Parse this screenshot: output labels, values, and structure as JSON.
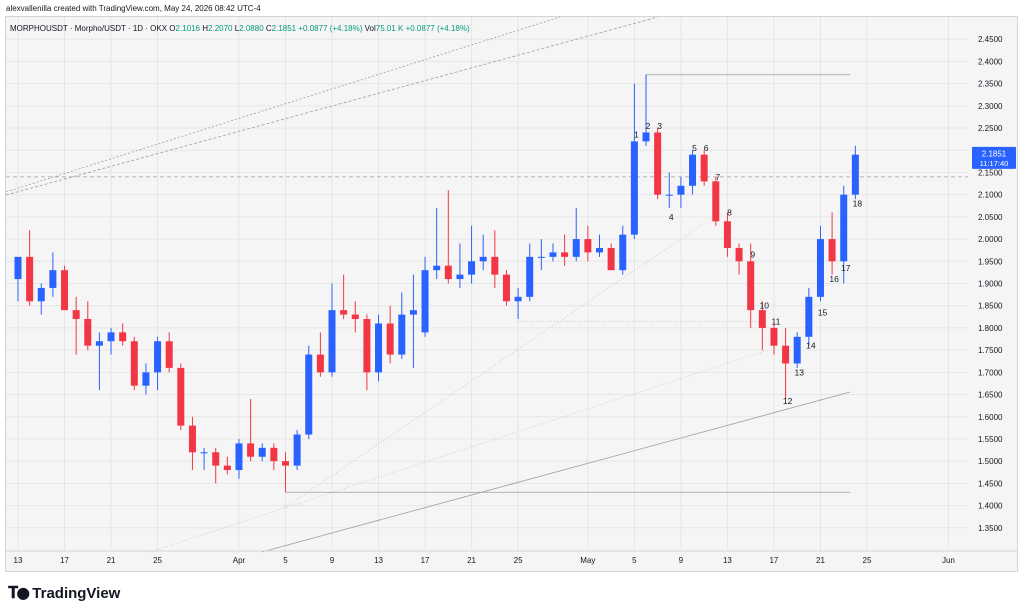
{
  "header": {
    "attribution": "alexvallenilla created with TradingView.com, May 24, 2026 08:42 UTC-4"
  },
  "legend": {
    "symbol": "MORPHOUSDT · Morpho/USDT · 1D · OKX",
    "open_label": "O",
    "open": "2.1016",
    "high_label": "H",
    "high": "2.2070",
    "low_label": "L",
    "low": "2.0880",
    "close_label": "C",
    "close": "2.1851",
    "change": "+0.0877 (+4.18%)",
    "vol_label": "Vol",
    "vol": "75.01 K",
    "vol_change": "+0.0877 (+4.18%)"
  },
  "price_tag": {
    "price": "2.1851",
    "countdown": "11:17:40",
    "color": "#2962ff"
  },
  "footer": {
    "brand": "TradingView"
  },
  "colors": {
    "up": "#2962ff",
    "down": "#f23645",
    "grid": "#e6e6e6",
    "text": "#131722"
  },
  "chart_data": {
    "type": "candlestick",
    "ylim": [
      1.3,
      2.5
    ],
    "y_ticks": [
      1.35,
      1.4,
      1.45,
      1.5,
      1.55,
      1.6,
      1.65,
      1.7,
      1.75,
      1.8,
      1.85,
      1.9,
      1.95,
      2.0,
      2.05,
      2.1,
      2.15,
      2.2,
      2.25,
      2.3,
      2.35,
      2.4,
      2.45
    ],
    "x_ticks": [
      {
        "label": "13",
        "date": "2026-03-13"
      },
      {
        "label": "17",
        "date": "2026-03-17"
      },
      {
        "label": "21",
        "date": "2026-03-21"
      },
      {
        "label": "25",
        "date": "2026-03-25"
      },
      {
        "label": "Apr",
        "date": "2026-04-01"
      },
      {
        "label": "5",
        "date": "2026-04-05"
      },
      {
        "label": "9",
        "date": "2026-04-09"
      },
      {
        "label": "13",
        "date": "2026-04-13"
      },
      {
        "label": "17",
        "date": "2026-04-17"
      },
      {
        "label": "21",
        "date": "2026-04-21"
      },
      {
        "label": "25",
        "date": "2026-04-25"
      },
      {
        "label": "May",
        "date": "2026-05-01"
      },
      {
        "label": "5",
        "date": "2026-05-05"
      },
      {
        "label": "9",
        "date": "2026-05-09"
      },
      {
        "label": "13",
        "date": "2026-05-13"
      },
      {
        "label": "17",
        "date": "2026-05-17"
      },
      {
        "label": "21",
        "date": "2026-05-21"
      },
      {
        "label": "25",
        "date": "2026-05-25"
      },
      {
        "label": "Jun",
        "date": "2026-06-01"
      }
    ],
    "candles": [
      {
        "date": "2026-03-13",
        "o": 1.91,
        "h": 1.95,
        "l": 1.86,
        "c": 1.96
      },
      {
        "date": "2026-03-14",
        "o": 1.96,
        "h": 2.02,
        "l": 1.85,
        "c": 1.86
      },
      {
        "date": "2026-03-15",
        "o": 1.86,
        "h": 1.9,
        "l": 1.83,
        "c": 1.89
      },
      {
        "date": "2026-03-16",
        "o": 1.89,
        "h": 1.97,
        "l": 1.87,
        "c": 1.93
      },
      {
        "date": "2026-03-17",
        "o": 1.93,
        "h": 1.94,
        "l": 1.84,
        "c": 1.84
      },
      {
        "date": "2026-03-18",
        "o": 1.84,
        "h": 1.87,
        "l": 1.74,
        "c": 1.82
      },
      {
        "date": "2026-03-19",
        "o": 1.82,
        "h": 1.86,
        "l": 1.75,
        "c": 1.76
      },
      {
        "date": "2026-03-20",
        "o": 1.76,
        "h": 1.79,
        "l": 1.66,
        "c": 1.77
      },
      {
        "date": "2026-03-21",
        "o": 1.77,
        "h": 1.8,
        "l": 1.74,
        "c": 1.79
      },
      {
        "date": "2026-03-22",
        "o": 1.79,
        "h": 1.81,
        "l": 1.76,
        "c": 1.77
      },
      {
        "date": "2026-03-23",
        "o": 1.77,
        "h": 1.78,
        "l": 1.66,
        "c": 1.67
      },
      {
        "date": "2026-03-24",
        "o": 1.67,
        "h": 1.72,
        "l": 1.65,
        "c": 1.7
      },
      {
        "date": "2026-03-25",
        "o": 1.7,
        "h": 1.78,
        "l": 1.66,
        "c": 1.77
      },
      {
        "date": "2026-03-26",
        "o": 1.77,
        "h": 1.79,
        "l": 1.7,
        "c": 1.71
      },
      {
        "date": "2026-03-27",
        "o": 1.71,
        "h": 1.72,
        "l": 1.57,
        "c": 1.58
      },
      {
        "date": "2026-03-28",
        "o": 1.58,
        "h": 1.6,
        "l": 1.48,
        "c": 1.52
      },
      {
        "date": "2026-03-29",
        "o": 1.52,
        "h": 1.53,
        "l": 1.48,
        "c": 1.52
      },
      {
        "date": "2026-03-30",
        "o": 1.52,
        "h": 1.53,
        "l": 1.45,
        "c": 1.49
      },
      {
        "date": "2026-03-31",
        "o": 1.49,
        "h": 1.51,
        "l": 1.47,
        "c": 1.48
      },
      {
        "date": "2026-04-01",
        "o": 1.48,
        "h": 1.55,
        "l": 1.46,
        "c": 1.54
      },
      {
        "date": "2026-04-02",
        "o": 1.54,
        "h": 1.64,
        "l": 1.5,
        "c": 1.51
      },
      {
        "date": "2026-04-03",
        "o": 1.51,
        "h": 1.54,
        "l": 1.5,
        "c": 1.53
      },
      {
        "date": "2026-04-04",
        "o": 1.53,
        "h": 1.54,
        "l": 1.48,
        "c": 1.5
      },
      {
        "date": "2026-04-05",
        "o": 1.5,
        "h": 1.52,
        "l": 1.43,
        "c": 1.49
      },
      {
        "date": "2026-04-06",
        "o": 1.49,
        "h": 1.57,
        "l": 1.48,
        "c": 1.56
      },
      {
        "date": "2026-04-07",
        "o": 1.56,
        "h": 1.76,
        "l": 1.55,
        "c": 1.74
      },
      {
        "date": "2026-04-08",
        "o": 1.74,
        "h": 1.79,
        "l": 1.69,
        "c": 1.7
      },
      {
        "date": "2026-04-09",
        "o": 1.7,
        "h": 1.9,
        "l": 1.69,
        "c": 1.84
      },
      {
        "date": "2026-04-10",
        "o": 1.84,
        "h": 1.92,
        "l": 1.82,
        "c": 1.83
      },
      {
        "date": "2026-04-11",
        "o": 1.83,
        "h": 1.86,
        "l": 1.79,
        "c": 1.82
      },
      {
        "date": "2026-04-12",
        "o": 1.82,
        "h": 1.83,
        "l": 1.66,
        "c": 1.7
      },
      {
        "date": "2026-04-13",
        "o": 1.7,
        "h": 1.83,
        "l": 1.68,
        "c": 1.81
      },
      {
        "date": "2026-04-14",
        "o": 1.81,
        "h": 1.85,
        "l": 1.72,
        "c": 1.74
      },
      {
        "date": "2026-04-15",
        "o": 1.74,
        "h": 1.88,
        "l": 1.73,
        "c": 1.83
      },
      {
        "date": "2026-04-16",
        "o": 1.83,
        "h": 1.92,
        "l": 1.71,
        "c": 1.84
      },
      {
        "date": "2026-04-17",
        "o": 1.79,
        "h": 1.96,
        "l": 1.78,
        "c": 1.93
      },
      {
        "date": "2026-04-18",
        "o": 1.93,
        "h": 2.07,
        "l": 1.91,
        "c": 1.94
      },
      {
        "date": "2026-04-19",
        "o": 1.94,
        "h": 2.11,
        "l": 1.9,
        "c": 1.91
      },
      {
        "date": "2026-04-20",
        "o": 1.91,
        "h": 1.99,
        "l": 1.89,
        "c": 1.92
      },
      {
        "date": "2026-04-21",
        "o": 1.92,
        "h": 2.03,
        "l": 1.9,
        "c": 1.95
      },
      {
        "date": "2026-04-22",
        "o": 1.95,
        "h": 2.01,
        "l": 1.93,
        "c": 1.96
      },
      {
        "date": "2026-04-23",
        "o": 1.96,
        "h": 2.02,
        "l": 1.89,
        "c": 1.92
      },
      {
        "date": "2026-04-24",
        "o": 1.92,
        "h": 1.93,
        "l": 1.85,
        "c": 1.86
      },
      {
        "date": "2026-04-25",
        "o": 1.86,
        "h": 1.89,
        "l": 1.82,
        "c": 1.87
      },
      {
        "date": "2026-04-26",
        "o": 1.87,
        "h": 1.99,
        "l": 1.86,
        "c": 1.96
      },
      {
        "date": "2026-04-27",
        "o": 1.96,
        "h": 2.0,
        "l": 1.93,
        "c": 1.96
      },
      {
        "date": "2026-04-28",
        "o": 1.96,
        "h": 1.99,
        "l": 1.95,
        "c": 1.97
      },
      {
        "date": "2026-04-29",
        "o": 1.97,
        "h": 2.01,
        "l": 1.94,
        "c": 1.96
      },
      {
        "date": "2026-04-30",
        "o": 1.96,
        "h": 2.07,
        "l": 1.95,
        "c": 2.0
      },
      {
        "date": "2026-05-01",
        "o": 2.0,
        "h": 2.03,
        "l": 1.95,
        "c": 1.97
      },
      {
        "date": "2026-05-02",
        "o": 1.97,
        "h": 2.01,
        "l": 1.96,
        "c": 1.98
      },
      {
        "date": "2026-05-03",
        "o": 1.98,
        "h": 1.99,
        "l": 1.93,
        "c": 1.93
      },
      {
        "date": "2026-05-04",
        "o": 1.93,
        "h": 2.03,
        "l": 1.92,
        "c": 2.01
      },
      {
        "date": "2026-05-05",
        "o": 2.01,
        "h": 2.35,
        "l": 2.0,
        "c": 2.22
      },
      {
        "date": "2026-05-06",
        "o": 2.22,
        "h": 2.37,
        "l": 2.21,
        "c": 2.24
      },
      {
        "date": "2026-05-07",
        "o": 2.24,
        "h": 2.25,
        "l": 2.09,
        "c": 2.1
      },
      {
        "date": "2026-05-08",
        "o": 2.1,
        "h": 2.15,
        "l": 2.07,
        "c": 2.1
      },
      {
        "date": "2026-05-09",
        "o": 2.1,
        "h": 2.14,
        "l": 2.07,
        "c": 2.12
      },
      {
        "date": "2026-05-10",
        "o": 2.12,
        "h": 2.2,
        "l": 2.1,
        "c": 2.19
      },
      {
        "date": "2026-05-11",
        "o": 2.19,
        "h": 2.2,
        "l": 2.12,
        "c": 2.13
      },
      {
        "date": "2026-05-12",
        "o": 2.13,
        "h": 2.14,
        "l": 2.03,
        "c": 2.04
      },
      {
        "date": "2026-05-13",
        "o": 2.04,
        "h": 2.06,
        "l": 1.96,
        "c": 1.98
      },
      {
        "date": "2026-05-14",
        "o": 1.98,
        "h": 1.99,
        "l": 1.92,
        "c": 1.95
      },
      {
        "date": "2026-05-15",
        "o": 1.95,
        "h": 1.99,
        "l": 1.8,
        "c": 1.84
      },
      {
        "date": "2026-05-16",
        "o": 1.84,
        "h": 1.86,
        "l": 1.75,
        "c": 1.8
      },
      {
        "date": "2026-05-17",
        "o": 1.8,
        "h": 1.81,
        "l": 1.74,
        "c": 1.76
      },
      {
        "date": "2026-05-18",
        "o": 1.76,
        "h": 1.8,
        "l": 1.64,
        "c": 1.72
      },
      {
        "date": "2026-05-19",
        "o": 1.72,
        "h": 1.79,
        "l": 1.71,
        "c": 1.78
      },
      {
        "date": "2026-05-20",
        "o": 1.78,
        "h": 1.89,
        "l": 1.76,
        "c": 1.87
      },
      {
        "date": "2026-05-21",
        "o": 1.87,
        "h": 2.03,
        "l": 1.86,
        "c": 2.0
      },
      {
        "date": "2026-05-22",
        "o": 2.0,
        "h": 2.06,
        "l": 1.92,
        "c": 1.95
      },
      {
        "date": "2026-05-23",
        "o": 1.95,
        "h": 2.12,
        "l": 1.9,
        "c": 2.1
      },
      {
        "date": "2026-05-24",
        "o": 2.1,
        "h": 2.21,
        "l": 2.09,
        "c": 2.19
      }
    ],
    "wave_labels": [
      {
        "text": "1",
        "date": "2026-05-05",
        "y": 2.235
      },
      {
        "text": "2",
        "date": "2026-05-06",
        "y": 2.255
      },
      {
        "text": "3",
        "date": "2026-05-07",
        "y": 2.255
      },
      {
        "text": "4",
        "date": "2026-05-08",
        "y": 2.05
      },
      {
        "text": "5",
        "date": "2026-05-10",
        "y": 2.205
      },
      {
        "text": "6",
        "date": "2026-05-11",
        "y": 2.205
      },
      {
        "text": "7",
        "date": "2026-05-12",
        "y": 2.14
      },
      {
        "text": "8",
        "date": "2026-05-13",
        "y": 2.06
      },
      {
        "text": "9",
        "date": "2026-05-15",
        "y": 1.965
      },
      {
        "text": "10",
        "date": "2026-05-16",
        "y": 1.85
      },
      {
        "text": "11",
        "date": "2026-05-17",
        "y": 1.815
      },
      {
        "text": "12",
        "date": "2026-05-18",
        "y": 1.635
      },
      {
        "text": "13",
        "date": "2026-05-19",
        "y": 1.7
      },
      {
        "text": "14",
        "date": "2026-05-20",
        "y": 1.76
      },
      {
        "text": "15",
        "date": "2026-05-21",
        "y": 1.835
      },
      {
        "text": "16",
        "date": "2026-05-22",
        "y": 1.91
      },
      {
        "text": "17",
        "date": "2026-05-23",
        "y": 1.935
      },
      {
        "text": "18",
        "date": "2026-05-24",
        "y": 2.08
      }
    ],
    "reference_lines": {
      "dashed_current": 2.14,
      "high_level": 2.37,
      "low_level": 1.43
    }
  }
}
